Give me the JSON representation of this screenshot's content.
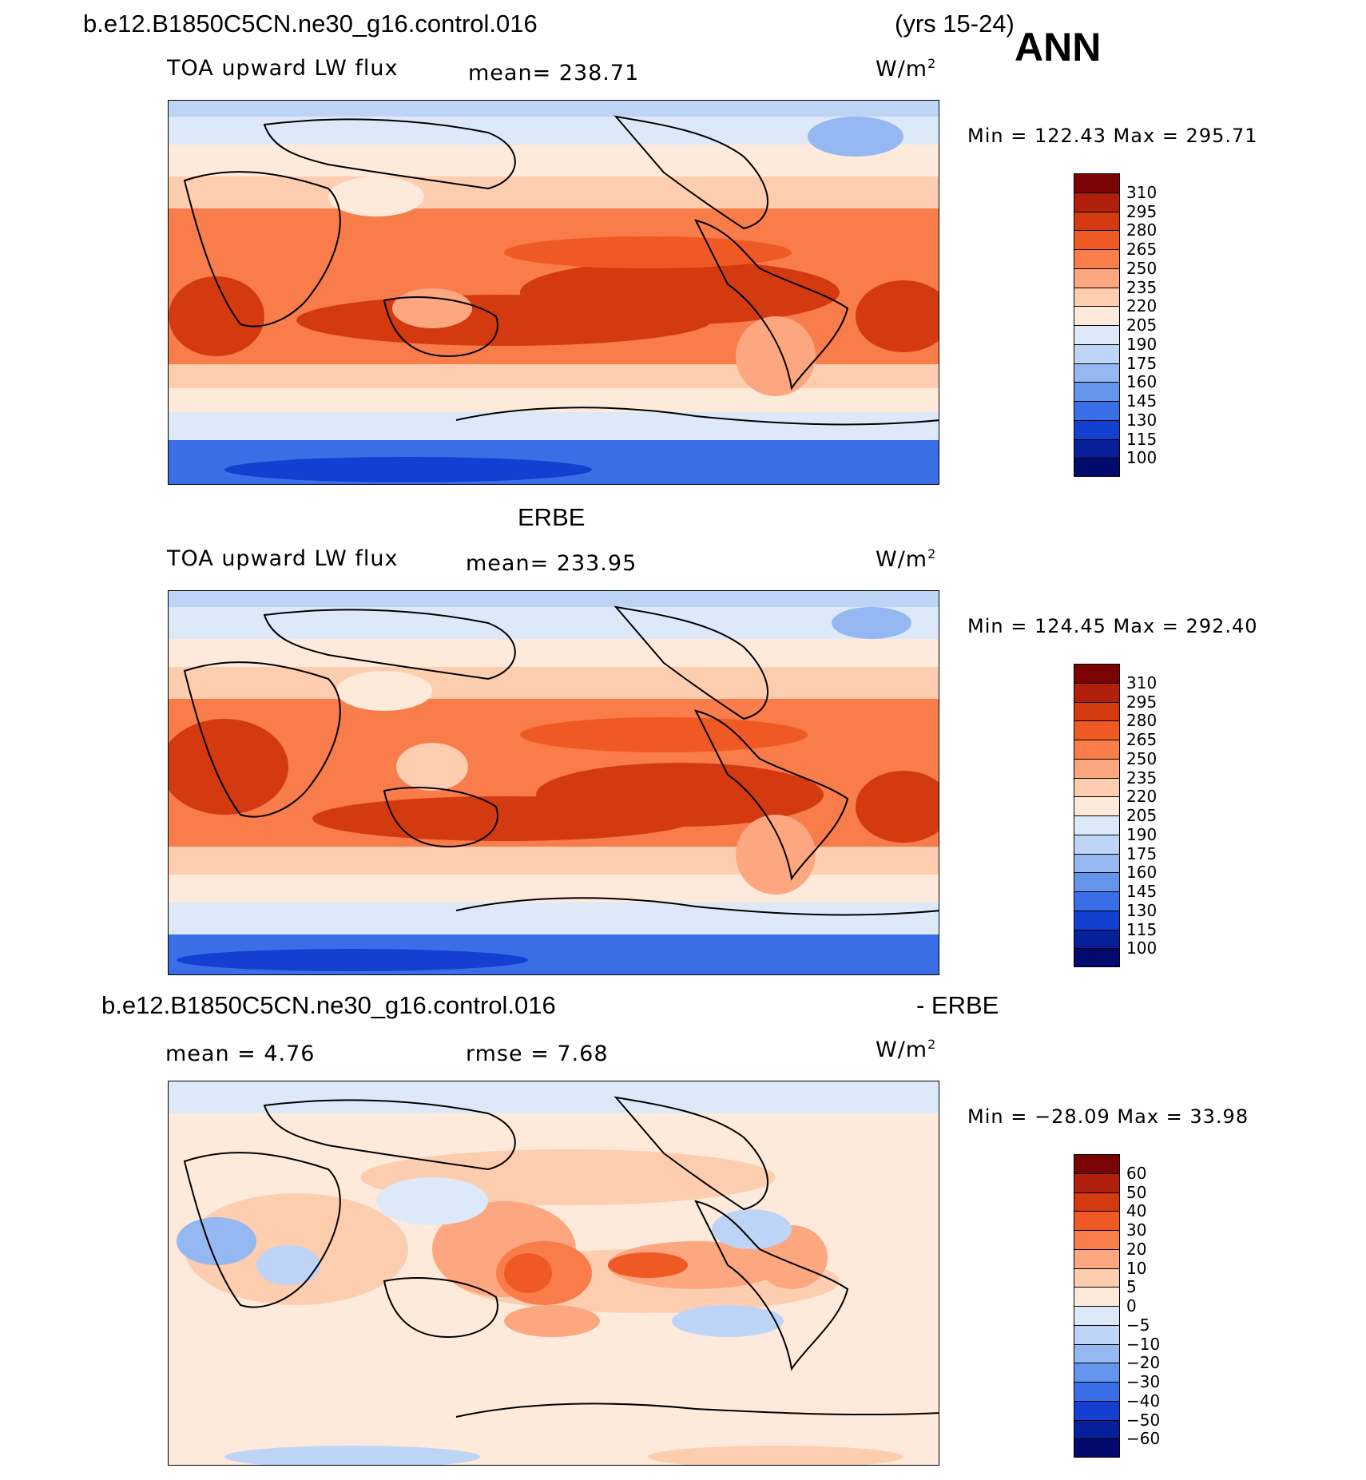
{
  "header": {
    "case_name": "b.e12.B1850C5CN.ne30_g16.control.016",
    "years": "(yrs 15-24)",
    "season": "ANN"
  },
  "panels": [
    {
      "id": "model",
      "heading": "",
      "variable": "TOA upward LW flux",
      "stat_text": "mean=  238.71",
      "units": "W/m",
      "units_exp": "2",
      "minmax": "Min  =  122.43  Max  =  295.71",
      "colorbar_labels": [
        "310",
        "295",
        "280",
        "265",
        "250",
        "235",
        "220",
        "205",
        "190",
        "175",
        "160",
        "145",
        "130",
        "115",
        "100"
      ]
    },
    {
      "id": "obs",
      "heading": "ERBE",
      "variable": "TOA upward LW flux",
      "stat_text": "mean=  233.95",
      "units": "W/m",
      "units_exp": "2",
      "minmax": "Min  =  124.45  Max  =  292.40",
      "colorbar_labels": [
        "310",
        "295",
        "280",
        "265",
        "250",
        "235",
        "220",
        "205",
        "190",
        "175",
        "160",
        "145",
        "130",
        "115",
        "100"
      ]
    },
    {
      "id": "diff",
      "heading_left": "b.e12.B1850C5CN.ne30_g16.control.016",
      "heading_right": "- ERBE",
      "stat_mean": "mean  =     4.76",
      "stat_rmse": "rmse  =     7.68",
      "units": "W/m",
      "units_exp": "2",
      "minmax": "Min  =  −28.09  Max  =    33.98",
      "colorbar_labels": [
        "60",
        "50",
        "40",
        "30",
        "20",
        "10",
        "5",
        "0",
        "−5",
        "−10",
        "−20",
        "−30",
        "−40",
        "−50",
        "−60"
      ]
    }
  ],
  "palette": [
    "#7a0403",
    "#b11f0d",
    "#d33a10",
    "#ef5a24",
    "#f97c4b",
    "#fca77f",
    "#fdcdb0",
    "#fdeadb",
    "#dde9f8",
    "#bed4f6",
    "#95b7f2",
    "#6494ec",
    "#3a6ee6",
    "#1440d1",
    "#071f9a",
    "#020a6e"
  ],
  "diff_palette": [
    "#7a0403",
    "#b11f0d",
    "#d33a10",
    "#ef5a24",
    "#f97c4b",
    "#fca77f",
    "#fdcdb0",
    "#fdeadb",
    "#dde9f8",
    "#bed4f6",
    "#95b7f2",
    "#6494ec",
    "#3a6ee6",
    "#1440d1",
    "#071f9a",
    "#020a6e"
  ]
}
